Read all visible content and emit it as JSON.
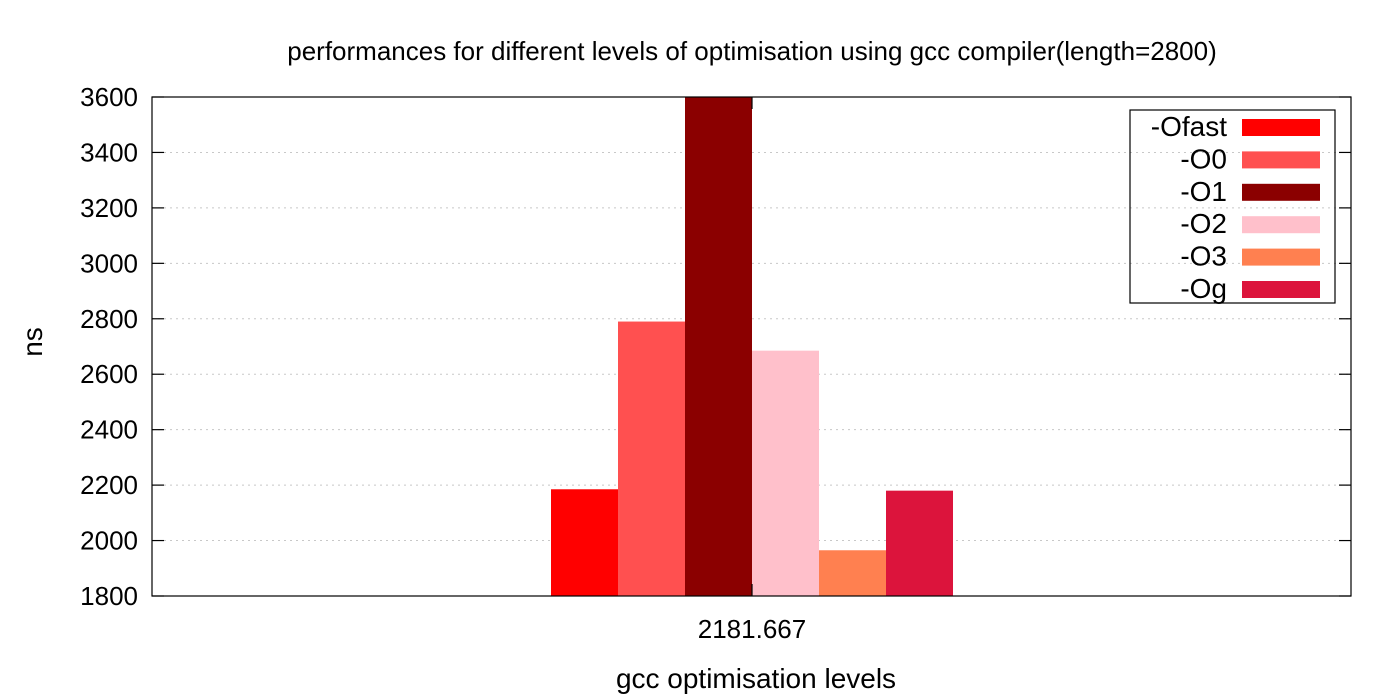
{
  "chart_data": {
    "type": "bar",
    "title": "performances for different levels of optimisation using gcc compiler(length=2800)",
    "xlabel": "gcc optimisation levels",
    "ylabel": "ns",
    "categories": [
      "2181.667"
    ],
    "ylim": [
      1800,
      3600
    ],
    "yticks": [
      "1800",
      "2000",
      "2200",
      "2400",
      "2600",
      "2800",
      "3000",
      "3200",
      "3400",
      "3600"
    ],
    "grid": true,
    "legend_position": "top-right",
    "series": [
      {
        "name": "-Ofast",
        "color": "#ff0000",
        "values": [
          2185
        ]
      },
      {
        "name": "-O0",
        "color": "#ff5050",
        "values": [
          2790
        ]
      },
      {
        "name": "-O1",
        "color": "#8b0000",
        "values": [
          3600
        ]
      },
      {
        "name": "-O2",
        "color": "#ffc0cb",
        "values": [
          2685
        ]
      },
      {
        "name": "-O3",
        "color": "#ff8050",
        "values": [
          1965
        ]
      },
      {
        "name": "-Og",
        "color": "#dc143c",
        "values": [
          2180
        ]
      }
    ]
  }
}
